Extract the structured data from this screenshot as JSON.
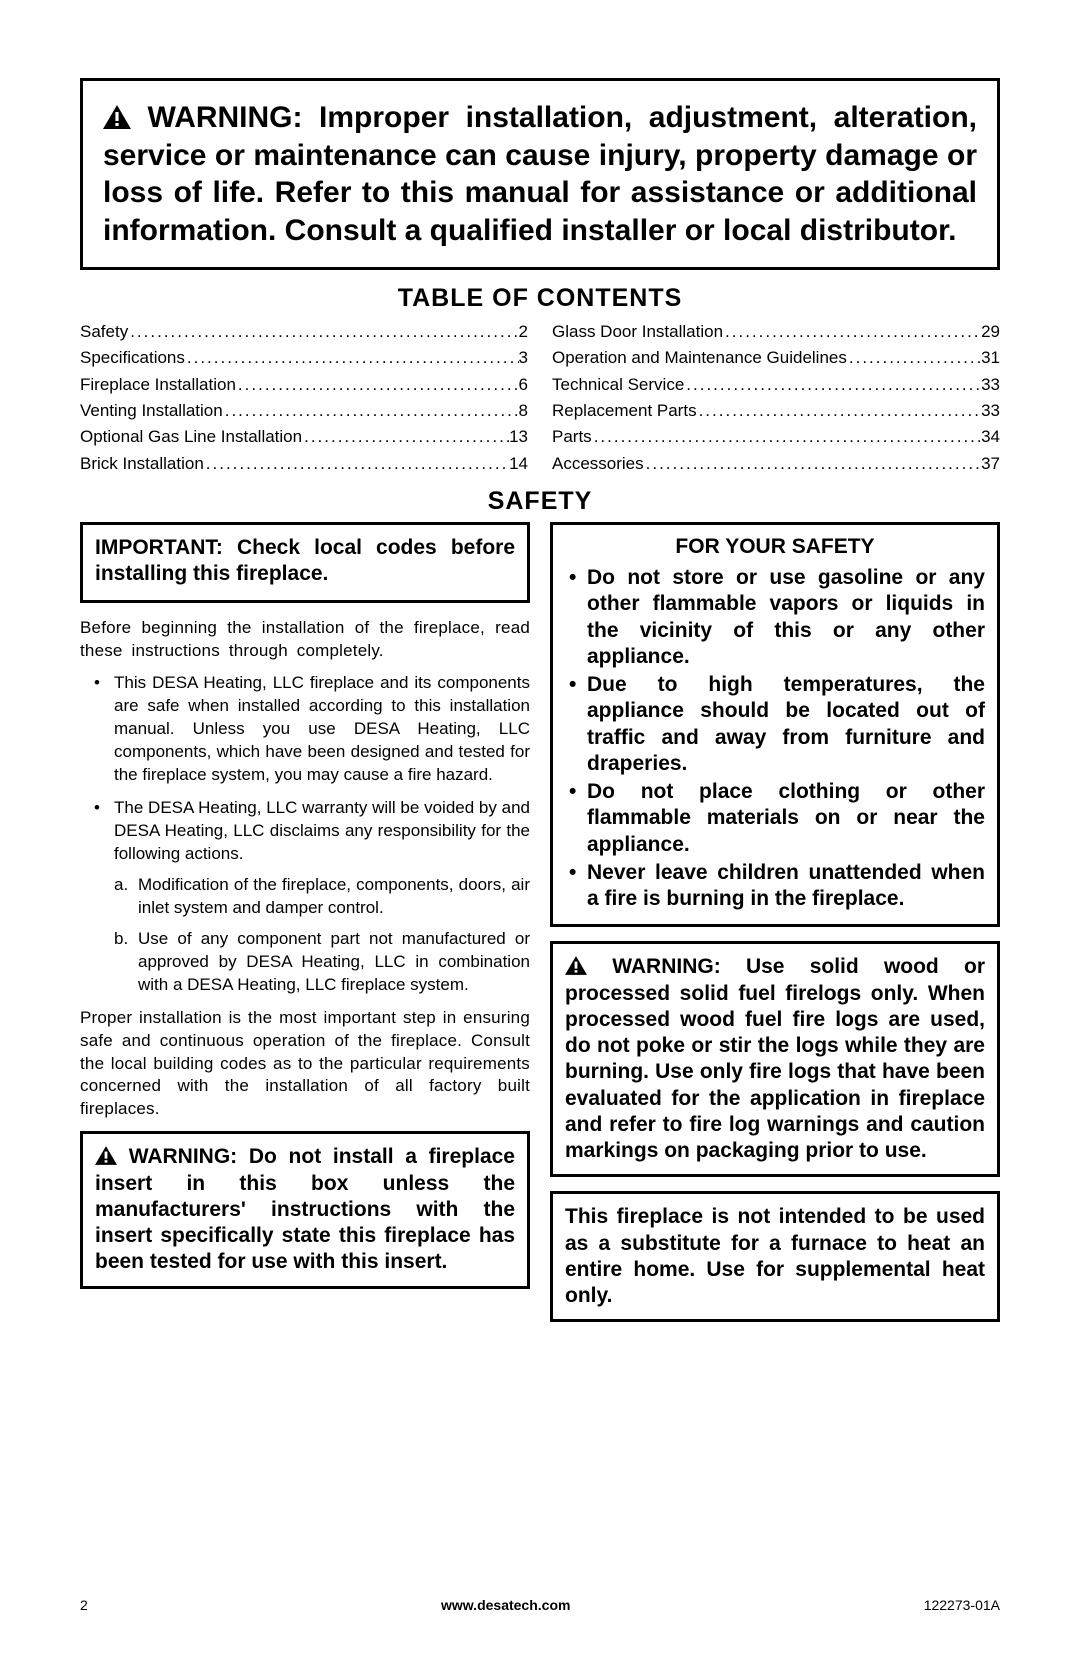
{
  "warning_top": "WARNING: Improper installation, adjustment, alteration, service or maintenance can cause injury, property damage or loss of life. Refer to this manual for assistance or additional information. Consult a qualified installer or local distributor.",
  "heading_toc": "TABLE OF CONTENTS",
  "heading_safety": "SAFETY",
  "toc_left": [
    {
      "label": "Safety",
      "page": "2"
    },
    {
      "label": "Specifications",
      "page": "3"
    },
    {
      "label": "Fireplace Installation",
      "page": "6"
    },
    {
      "label": "Venting Installation",
      "page": "8"
    },
    {
      "label": "Optional Gas Line Installation",
      "page": "13"
    },
    {
      "label": "Brick Installation",
      "page": "14"
    }
  ],
  "toc_right": [
    {
      "label": "Glass Door Installation",
      "page": "29"
    },
    {
      "label": "Operation and Maintenance Guidelines",
      "page": "31"
    },
    {
      "label": "Technical Service",
      "page": "33"
    },
    {
      "label": "Replacement Parts",
      "page": "33"
    },
    {
      "label": "Parts",
      "page": "34"
    },
    {
      "label": "Accessories",
      "page": "37"
    }
  ],
  "left": {
    "important_box": "IMPORTANT: Check local codes before installing this fireplace.",
    "intro": "Before beginning the installation of the fireplace, read these instructions through completely.",
    "bullet1": "This DESA Heating, LLC fireplace and its components are safe when installed according to this installation manual. Unless you use DESA Heating, LLC components, which have been designed and tested for the fireplace system, you may cause a fire hazard.",
    "bullet2_lead": "The DESA Heating, LLC warranty will be voided by and DESA Heating, LLC disclaims any responsibility for the following actions.",
    "sub_a": "Modification of the fireplace, components, doors, air inlet system and damper control.",
    "sub_b": "Use of any component part not manufactured or approved by DESA Heating, LLC in combination with a DESA Heating, LLC fireplace system.",
    "closing": "Proper installation is the most important step in ensuring safe and continuous operation of the fireplace. Consult the local building codes as to the particular requirements concerned with the installation of all factory built fireplaces.",
    "warning_box": "WARNING: Do not install a fireplace insert in this box unless the manufacturers' instructions with the insert specifically state this fireplace has been tested for use with this insert."
  },
  "right": {
    "safety_heading": "FOR YOUR SAFETY",
    "items": [
      "Do not store or use gasoline or any other flammable vapors or liquids in the vicinity of this or any other appliance.",
      "Due to high temperatures, the appliance should be located out of traffic and away from furniture and draperies.",
      "Do not place clothing or other flammable materials on or near the appliance.",
      "Never leave children unattended when a fire is burning in the fireplace."
    ],
    "warning_box": "WARNING: Use solid wood or processed solid fuel firelogs only. When processed wood fuel fire logs are used, do not poke or stir the logs while they are burning. Use only fire logs that have been evaluated for the application in fireplace and refer to fire log warnings and caution markings on packaging prior to use.",
    "last_box": "This fireplace is not intended to be used as a substitute for a furnace to heat an entire home. Use for supplemental heat only."
  },
  "footer": {
    "page": "2",
    "url": "www.desatech.com",
    "doc": "122273-01A"
  }
}
